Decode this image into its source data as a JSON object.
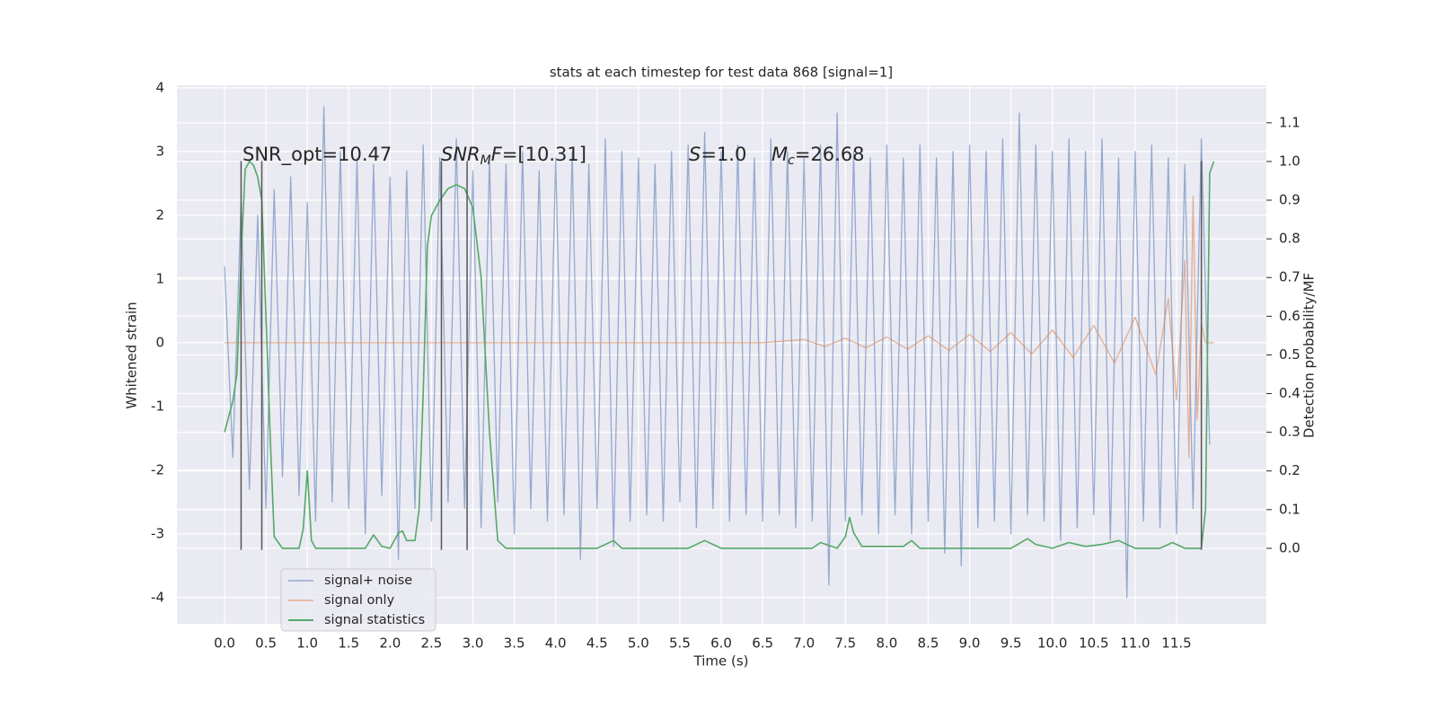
{
  "chart_data": {
    "type": "line",
    "title": "stats at each timestep for test data 868 [signal=1]",
    "xlabel": "Time (s)",
    "ylabel": "Whitened strain",
    "y2label": "Detection probability/MF",
    "xlim": [
      -0.575,
      12.585
    ],
    "ylim": [
      -4.41,
      4.04
    ],
    "y2lim": [
      -0.195,
      1.197
    ],
    "xticks": [
      {
        "value": 0,
        "label": "0.0"
      },
      {
        "value": 0.5,
        "label": "0.5"
      },
      {
        "value": 1,
        "label": "1.0"
      },
      {
        "value": 1.5,
        "label": "1.5"
      },
      {
        "value": 2,
        "label": "2.0"
      },
      {
        "value": 2.5,
        "label": "2.5"
      },
      {
        "value": 3,
        "label": "3.0"
      },
      {
        "value": 3.5,
        "label": "3.5"
      },
      {
        "value": 4,
        "label": "4.0"
      },
      {
        "value": 4.5,
        "label": "4.5"
      },
      {
        "value": 5,
        "label": "5.0"
      },
      {
        "value": 5.5,
        "label": "5.5"
      },
      {
        "value": 6,
        "label": "6.0"
      },
      {
        "value": 6.5,
        "label": "6.5"
      },
      {
        "value": 7,
        "label": "7.0"
      },
      {
        "value": 7.5,
        "label": "7.5"
      },
      {
        "value": 8,
        "label": "8.0"
      },
      {
        "value": 8.5,
        "label": "8.5"
      },
      {
        "value": 9,
        "label": "9.0"
      },
      {
        "value": 9.5,
        "label": "9.5"
      },
      {
        "value": 10,
        "label": "10.0"
      },
      {
        "value": 10.5,
        "label": "10.5"
      },
      {
        "value": 11,
        "label": "11.0"
      },
      {
        "value": 11.5,
        "label": "11.5"
      }
    ],
    "yticks": [
      -4,
      -3,
      -2,
      -1,
      0,
      1,
      2,
      3,
      4
    ],
    "y2ticks": [
      {
        "value": 0,
        "label": "0.0"
      },
      {
        "value": 0.1,
        "label": "0.1"
      },
      {
        "value": 0.2,
        "label": "0.2"
      },
      {
        "value": 0.3,
        "label": "0.3"
      },
      {
        "value": 0.4,
        "label": "0.4"
      },
      {
        "value": 0.5,
        "label": "0.5"
      },
      {
        "value": 0.6,
        "label": "0.6"
      },
      {
        "value": 0.7,
        "label": "0.7"
      },
      {
        "value": 0.8,
        "label": "0.8"
      },
      {
        "value": 0.9,
        "label": "0.9"
      },
      {
        "value": 1,
        "label": "1.0"
      },
      {
        "value": 1.1,
        "label": "1.1"
      }
    ],
    "grid": true,
    "legend": "lower left",
    "series": [
      {
        "name": "signal+ noise",
        "color": "#4c72b0",
        "x": [
          0.0,
          0.1,
          0.2,
          0.3,
          0.4,
          0.5,
          0.6,
          0.7,
          0.8,
          0.9,
          1.0,
          1.1,
          1.2,
          1.3,
          1.4,
          1.5,
          1.6,
          1.7,
          1.8,
          1.9,
          2.0,
          2.1,
          2.2,
          2.3,
          2.4,
          2.5,
          2.6,
          2.7,
          2.8,
          2.9,
          3.0,
          3.1,
          3.2,
          3.3,
          3.4,
          3.5,
          3.6,
          3.7,
          3.8,
          3.9,
          4.0,
          4.1,
          4.2,
          4.3,
          4.4,
          4.5,
          4.6,
          4.7,
          4.8,
          4.9,
          5.0,
          5.1,
          5.2,
          5.3,
          5.4,
          5.5,
          5.6,
          5.7,
          5.8,
          5.9,
          6.0,
          6.1,
          6.2,
          6.3,
          6.4,
          6.5,
          6.6,
          6.7,
          6.8,
          6.9,
          7.0,
          7.1,
          7.2,
          7.3,
          7.4,
          7.5,
          7.6,
          7.7,
          7.8,
          7.9,
          8.0,
          8.1,
          8.2,
          8.3,
          8.4,
          8.5,
          8.6,
          8.7,
          8.8,
          8.9,
          9.0,
          9.1,
          9.2,
          9.3,
          9.4,
          9.5,
          9.6,
          9.7,
          9.8,
          9.9,
          10.0,
          10.1,
          10.2,
          10.3,
          10.4,
          10.5,
          10.6,
          10.7,
          10.8,
          10.9,
          11.0,
          11.1,
          11.2,
          11.3,
          11.4,
          11.5,
          11.6,
          11.7,
          11.8,
          11.9
        ],
        "values": [
          1.2,
          -1.8,
          2.2,
          -2.3,
          2.0,
          -2.6,
          2.4,
          -2.1,
          2.6,
          -2.4,
          2.2,
          -2.8,
          3.7,
          -2.5,
          3.0,
          -2.6,
          2.9,
          -3.0,
          2.8,
          -2.4,
          2.6,
          -3.4,
          2.7,
          -2.6,
          3.1,
          -2.8,
          2.9,
          -2.5,
          3.2,
          -2.6,
          2.7,
          -2.9,
          2.9,
          -2.5,
          2.8,
          -3.0,
          3.0,
          -2.6,
          2.7,
          -2.8,
          2.9,
          -2.7,
          3.0,
          -3.4,
          2.8,
          -2.6,
          3.2,
          -3.2,
          3.0,
          -2.8,
          2.9,
          -2.7,
          2.8,
          -2.8,
          3.0,
          -2.5,
          3.1,
          -2.9,
          3.3,
          -2.6,
          3.0,
          -2.8,
          3.1,
          -2.7,
          2.9,
          -2.8,
          3.2,
          -2.7,
          3.0,
          -2.9,
          2.9,
          -2.8,
          3.1,
          -3.8,
          3.6,
          -2.8,
          3.0,
          -2.7,
          2.9,
          -3.0,
          3.1,
          -2.7,
          2.9,
          -3.0,
          3.1,
          -2.8,
          2.9,
          -3.3,
          3.0,
          -3.5,
          3.1,
          -2.9,
          3.0,
          -2.8,
          3.2,
          -3.0,
          3.6,
          -2.7,
          3.1,
          -2.8,
          3.0,
          -3.1,
          3.2,
          -2.9,
          3.0,
          -2.7,
          3.2,
          -3.1,
          2.9,
          -4.0,
          3.0,
          -2.8,
          3.1,
          -2.9,
          2.9,
          -3.0,
          2.8,
          -2.6,
          3.2,
          -1.6
        ]
      },
      {
        "name": "signal only",
        "color": "#dd8452",
        "x": [
          0.0,
          6.5,
          7.0,
          7.25,
          7.5,
          7.75,
          8.0,
          8.25,
          8.5,
          8.75,
          9.0,
          9.25,
          9.5,
          9.75,
          10.0,
          10.25,
          10.5,
          10.75,
          11.0,
          11.25,
          11.4,
          11.5,
          11.6,
          11.65,
          11.7,
          11.75,
          11.8,
          11.85,
          11.95
        ],
        "values": [
          0,
          0,
          0.05,
          -0.06,
          0.07,
          -0.08,
          0.09,
          -0.1,
          0.11,
          -0.12,
          0.13,
          -0.14,
          0.16,
          -0.18,
          0.2,
          -0.23,
          0.27,
          -0.32,
          0.4,
          -0.5,
          0.7,
          -0.9,
          1.3,
          -1.8,
          2.3,
          -1.2,
          0.3,
          0,
          0
        ]
      },
      {
        "name": "signal statistics",
        "color": "#55a868",
        "axis": "y2",
        "x": [
          0.0,
          0.1,
          0.15,
          0.2,
          0.25,
          0.3,
          0.35,
          0.4,
          0.45,
          0.5,
          0.55,
          0.6,
          0.7,
          0.9,
          0.95,
          1.0,
          1.05,
          1.1,
          1.7,
          1.8,
          1.9,
          2.0,
          2.1,
          2.15,
          2.2,
          2.3,
          2.35,
          2.4,
          2.45,
          2.5,
          2.6,
          2.7,
          2.8,
          2.9,
          3.0,
          3.1,
          3.2,
          3.3,
          3.4,
          4.5,
          4.7,
          4.8,
          5.6,
          5.8,
          6.0,
          7.1,
          7.2,
          7.4,
          7.5,
          7.55,
          7.6,
          7.7,
          8.2,
          8.3,
          8.4,
          9.5,
          9.7,
          9.8,
          10.0,
          10.2,
          10.4,
          10.6,
          10.8,
          11.0,
          11.3,
          11.45,
          11.6,
          11.8,
          11.85,
          11.9,
          11.95
        ],
        "values": [
          0.3,
          0.38,
          0.45,
          0.75,
          0.98,
          1.0,
          0.99,
          0.96,
          0.9,
          0.6,
          0.3,
          0.03,
          0.0,
          0.0,
          0.05,
          0.2,
          0.02,
          0.0,
          0.0,
          0.035,
          0.005,
          0.0,
          0.04,
          0.045,
          0.02,
          0.02,
          0.1,
          0.4,
          0.78,
          0.86,
          0.9,
          0.93,
          0.94,
          0.93,
          0.88,
          0.7,
          0.3,
          0.02,
          0.0,
          0.0,
          0.02,
          0.0,
          0.0,
          0.02,
          0.0,
          0.0,
          0.015,
          0.0,
          0.03,
          0.08,
          0.04,
          0.005,
          0.005,
          0.02,
          0.0,
          0.0,
          0.025,
          0.01,
          0.0,
          0.015,
          0.005,
          0.01,
          0.02,
          0.0,
          0.0,
          0.015,
          0.0,
          0.0,
          0.1,
          0.97,
          1.0
        ]
      }
    ],
    "vlines": {
      "x": [
        0.2,
        0.45,
        2.62,
        2.93,
        11.8
      ],
      "ymin": -3.25,
      "ymax": 2.85
    },
    "annotations": [
      {
        "parts": [
          {
            "text": "SNR_opt=10.47"
          }
        ]
      },
      {
        "parts": [
          {
            "text": "SNR",
            "style": "italic"
          },
          {
            "text": "M",
            "style": "sub"
          },
          {
            "text": "F",
            "style": "italic"
          },
          {
            "text": "=[10.31]"
          }
        ]
      },
      {
        "parts": [
          {
            "text": "S",
            "style": "italic"
          },
          {
            "text": "=1.0"
          }
        ]
      },
      {
        "parts": [
          {
            "text": "M",
            "style": "italic"
          },
          {
            "text": "c",
            "style": "sub"
          },
          {
            "text": "=26.68"
          }
        ]
      }
    ]
  }
}
